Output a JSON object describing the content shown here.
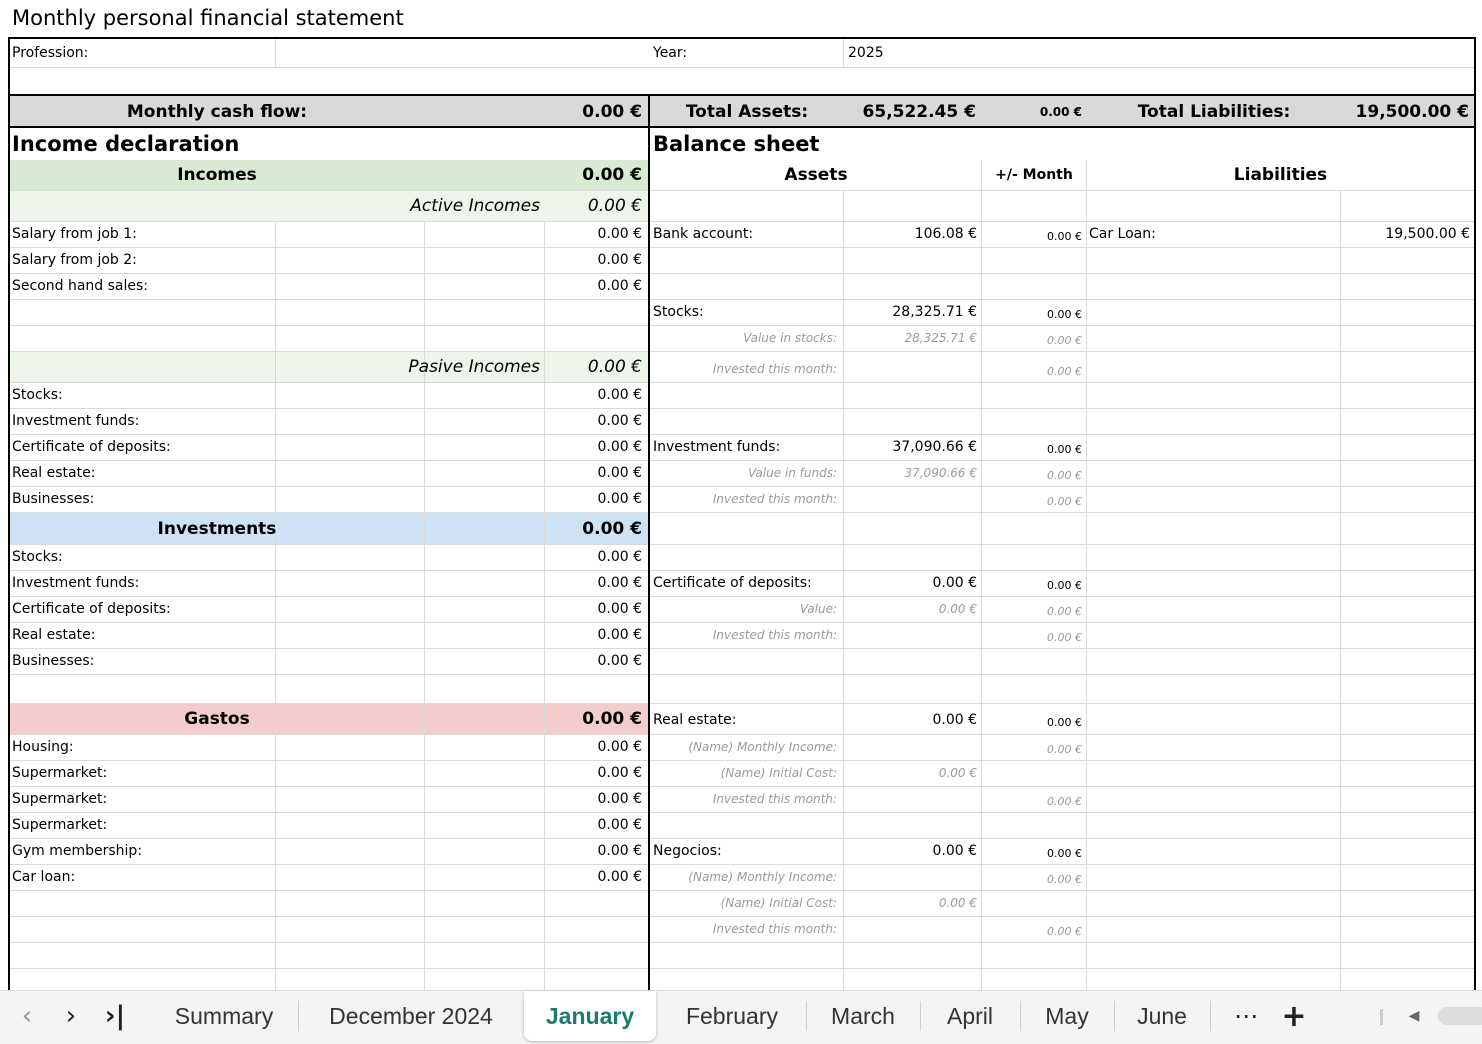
{
  "title": "Monthly personal financial statement",
  "profession_label": "Profession:",
  "year_label": "Year:",
  "year_value": "2025",
  "summary": {
    "cash_flow_label": "Monthly cash flow:",
    "cash_flow_value": "0.00 €",
    "total_assets_label": "Total Assets:",
    "total_assets_value": "65,522.45 €",
    "assets_change": "0.00 €",
    "total_liabilities_label": "Total Liabilities:",
    "total_liabilities_value": "19,500.00 €"
  },
  "income": {
    "section_title": "Income declaration",
    "incomes_label": "Incomes",
    "incomes_total": "0.00 €",
    "active_label": "Active Incomes",
    "active_total": "0.00 €",
    "active_items": [
      {
        "label": "Salary from job 1:",
        "value": "0.00 €"
      },
      {
        "label": "Salary from job 2:",
        "value": "0.00 €"
      },
      {
        "label": "Second hand sales:",
        "value": "0.00 €"
      }
    ],
    "passive_label": "Pasive Incomes",
    "passive_total": "0.00 €",
    "passive_items": [
      {
        "label": "Stocks:",
        "value": "0.00 €"
      },
      {
        "label": "Investment funds:",
        "value": "0.00 €"
      },
      {
        "label": "Certificate of deposits:",
        "value": "0.00 €"
      },
      {
        "label": "Real estate:",
        "value": "0.00 €"
      },
      {
        "label": "Businesses:",
        "value": "0.00 €"
      }
    ],
    "investments_label": "Investments",
    "investments_total": "0.00 €",
    "investment_items": [
      {
        "label": "Stocks:",
        "value": "0.00 €"
      },
      {
        "label": "Investment funds:",
        "value": "0.00 €"
      },
      {
        "label": "Certificate of deposits:",
        "value": "0.00 €"
      },
      {
        "label": "Real estate:",
        "value": "0.00 €"
      },
      {
        "label": "Businesses:",
        "value": "0.00 €"
      }
    ],
    "gastos_label": "Gastos",
    "gastos_total": "0.00 €",
    "gastos_items": [
      {
        "label": "Housing:",
        "value": "0.00 €"
      },
      {
        "label": "Supermarket:",
        "value": "0.00 €"
      },
      {
        "label": "Supermarket:",
        "value": "0.00 €"
      },
      {
        "label": "Supermarket:",
        "value": "0.00 €"
      },
      {
        "label": "Gym membership:",
        "value": "0.00 €"
      },
      {
        "label": "Car loan:",
        "value": "0.00 €"
      }
    ]
  },
  "balance": {
    "section_title": "Balance sheet",
    "assets_header": "Assets",
    "month_header": "+/- Month",
    "liabilities_header": "Liabilities",
    "bank": {
      "label": "Bank account:",
      "value": "106.08 €",
      "change": "0.00 €"
    },
    "car_loan": {
      "label": "Car Loan:",
      "value": "19,500.00 €"
    },
    "stocks": {
      "label": "Stocks:",
      "value": "28,325.71 €",
      "change": "0.00 €",
      "sub1_label": "Value in stocks:",
      "sub1_value": "28,325.71 €",
      "sub1_change": "0.00 €",
      "sub2_label": "Invested this month:",
      "sub2_change": "0.00 €"
    },
    "funds": {
      "label": "Investment funds:",
      "value": "37,090.66 €",
      "change": "0.00 €",
      "sub1_label": "Value in funds:",
      "sub1_value": "37,090.66 €",
      "sub1_change": "0.00 €",
      "sub2_label": "Invested this month:",
      "sub2_change": "0.00 €"
    },
    "cds": {
      "label": "Certificate of deposits:",
      "value": "0.00 €",
      "change": "0.00 €",
      "sub1_label": "Value:",
      "sub1_value": "0.00 €",
      "sub1_change": "0.00 €",
      "sub2_label": "Invested this month:",
      "sub2_change": "0.00 €"
    },
    "real_estate": {
      "label": "Real estate:",
      "value": "0.00 €",
      "change": "0.00 €",
      "sub1_label": "(Name) Monthly Income:",
      "sub1_change": "0.00 €",
      "sub2_label": "(Name) Initial Cost:",
      "sub2_value": "0.00 €",
      "sub3_label": "Invested this month:",
      "sub3_change": "0.00 €"
    },
    "negocios": {
      "label": "Negocios:",
      "value": "0.00 €",
      "change": "0.00 €",
      "sub1_label": "(Name) Monthly Income:",
      "sub1_change": "0.00 €",
      "sub2_label": "(Name) Initial Cost:",
      "sub2_value": "0.00 €",
      "sub3_label": "Invested this month:",
      "sub3_change": "0.00 €"
    }
  },
  "tabs": [
    "Summary",
    "December 2024",
    "January",
    "February",
    "March",
    "April",
    "May",
    "June"
  ],
  "active_tab": "January",
  "tab_more": "⋯",
  "tab_add": "+",
  "colors": {
    "incomes_green": "#d9ead3",
    "active_green": "#eef5ea",
    "investments_blue": "#cfe2f3",
    "gastos_red": "#f4cccc",
    "summary_gray": "#d9d9d9",
    "active_tab_text": "#1c7a6e"
  }
}
